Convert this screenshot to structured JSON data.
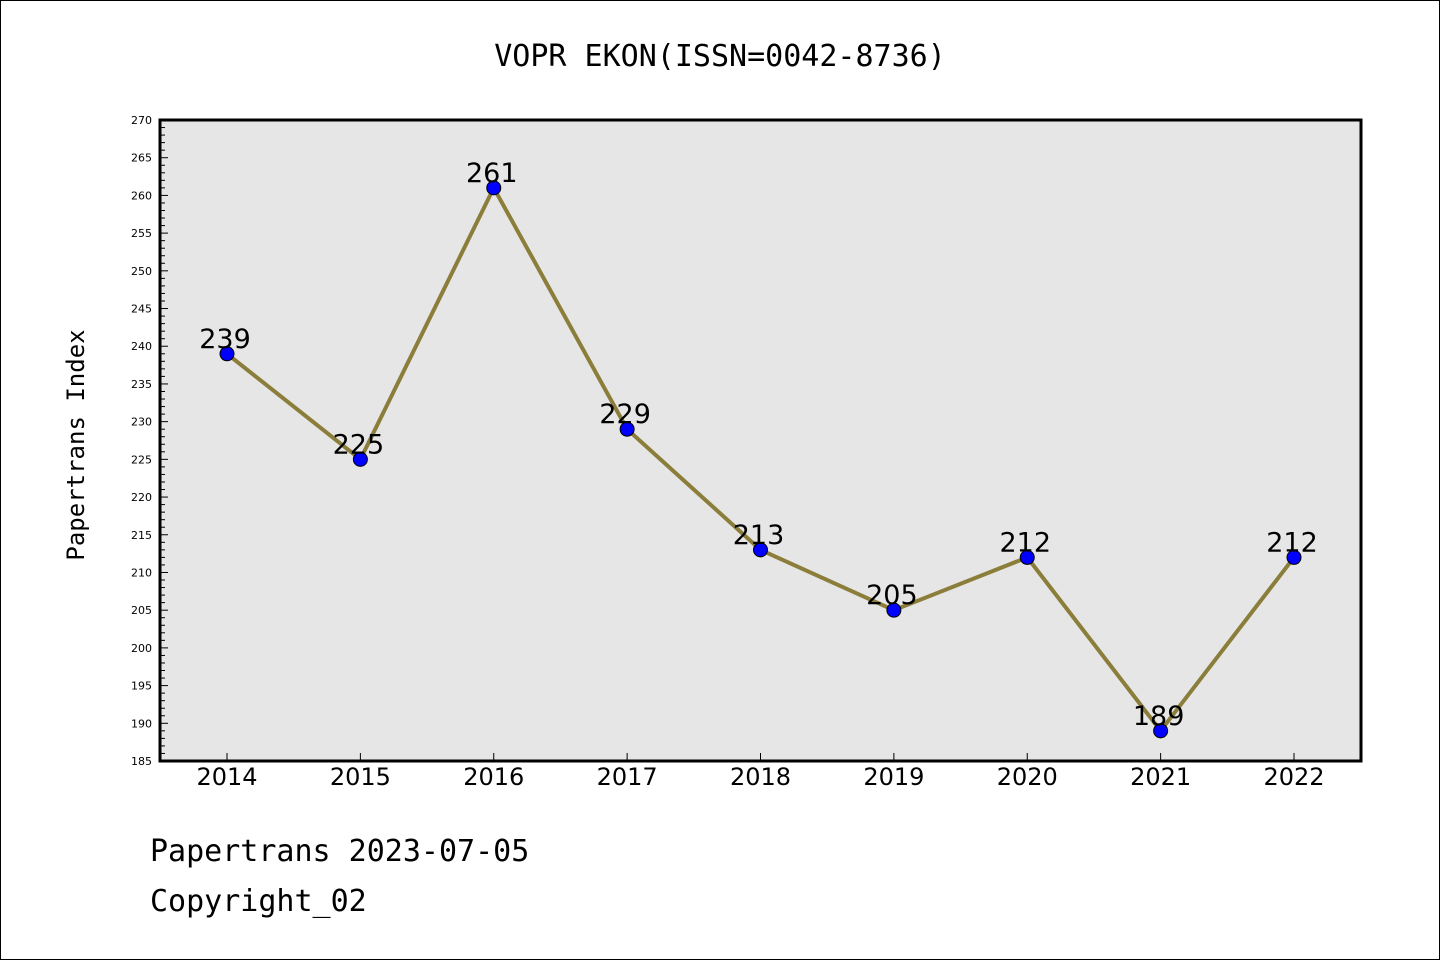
{
  "chart_data": {
    "type": "line",
    "title": "VOPR EKON(ISSN=0042-8736)",
    "xlabel": "",
    "ylabel": "Papertrans Index",
    "categories": [
      "2014",
      "2015",
      "2016",
      "2017",
      "2018",
      "2019",
      "2020",
      "2021",
      "2022"
    ],
    "series": [
      {
        "values": [
          239,
          225,
          261,
          229,
          213,
          205,
          212,
          189,
          212
        ],
        "line_color": "#8b7d3a",
        "marker_color": "#0000ff"
      }
    ],
    "ylim": [
      185,
      270
    ],
    "y_major_step": 5,
    "y_minor_step": 1,
    "grid": false,
    "plot_background": "#e6e6e6",
    "data_labels": true
  },
  "footer": {
    "date_line": "Papertrans 2023-07-05",
    "copyright": "Copyright_02"
  }
}
